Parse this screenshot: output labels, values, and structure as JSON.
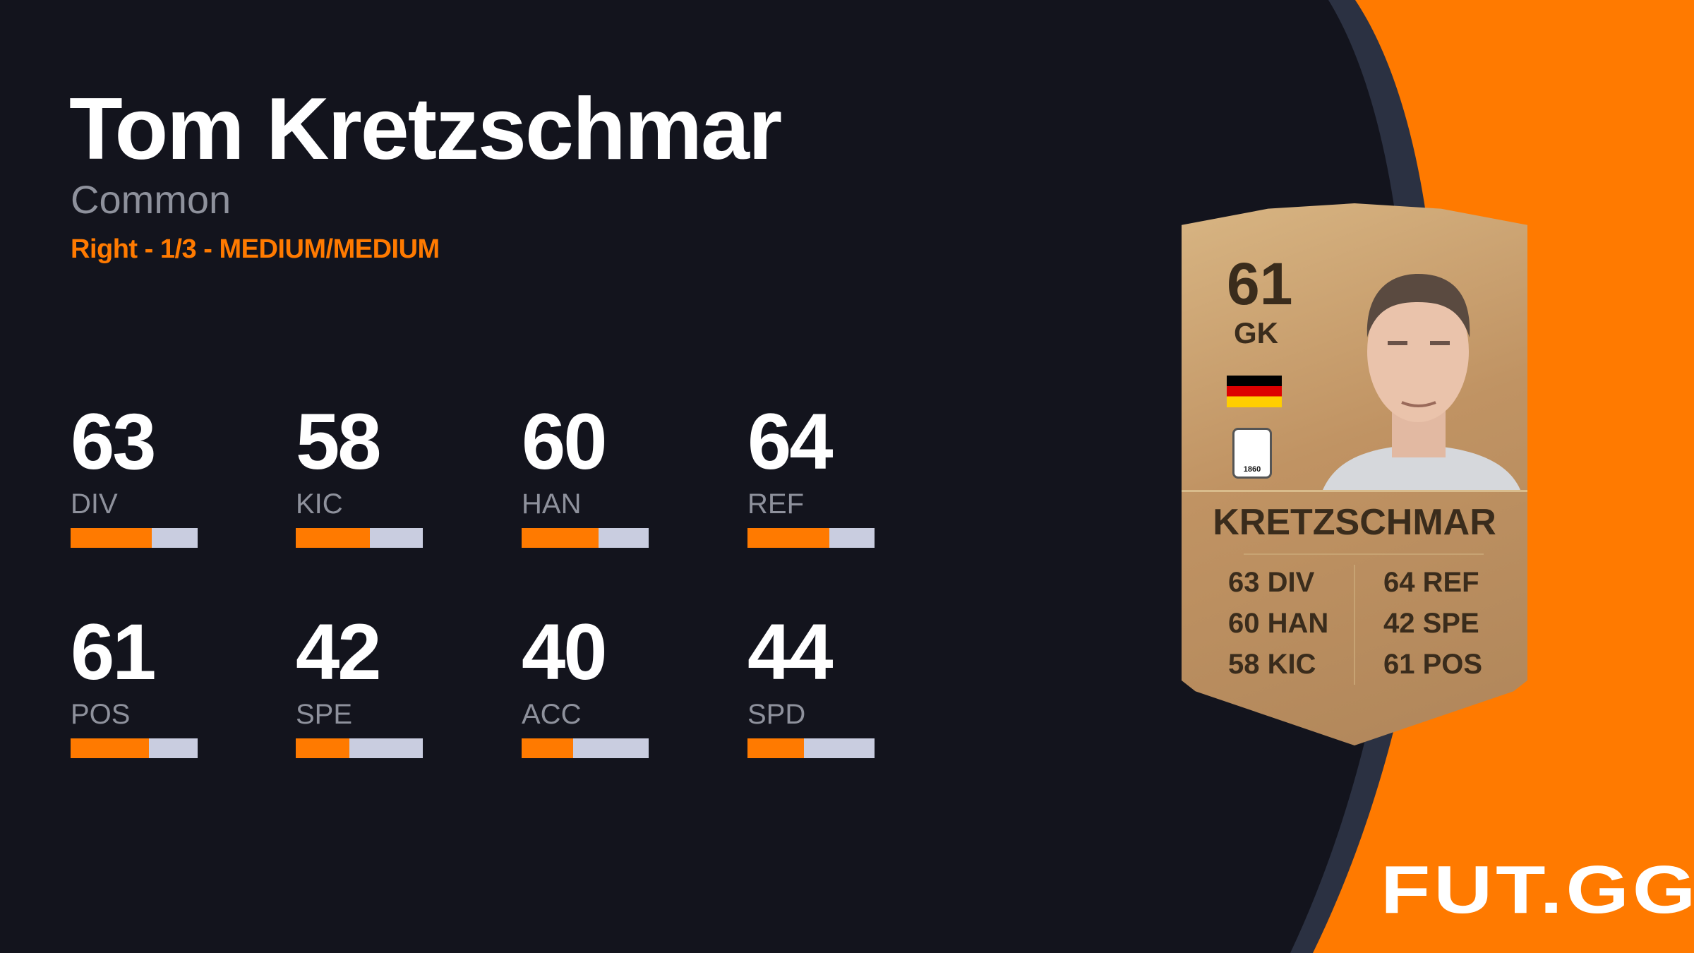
{
  "player": {
    "name": "Tom Kretzschmar",
    "rarity": "Common",
    "traits": "Right - 1/3 - MEDIUM/MEDIUM"
  },
  "stats": [
    {
      "value": 63,
      "label": "DIV"
    },
    {
      "value": 58,
      "label": "KIC"
    },
    {
      "value": 60,
      "label": "HAN"
    },
    {
      "value": 64,
      "label": "REF"
    },
    {
      "value": 61,
      "label": "POS"
    },
    {
      "value": 42,
      "label": "SPE"
    },
    {
      "value": 40,
      "label": "ACC"
    },
    {
      "value": 44,
      "label": "SPD"
    }
  ],
  "card": {
    "rating": "61",
    "position": "GK",
    "nation_flag": "germany-flag",
    "club_badge": "1860",
    "name": "KRETZSCHMAR",
    "left_stats": [
      "63 DIV",
      "60 HAN",
      "58 KIC"
    ],
    "right_stats": [
      "64 REF",
      "42 SPE",
      "61 POS"
    ]
  },
  "brand": {
    "logo": "FUT.GG"
  },
  "colors": {
    "accent": "#ff7a00",
    "background": "#13141d",
    "bar_track": "#c9cde0"
  }
}
